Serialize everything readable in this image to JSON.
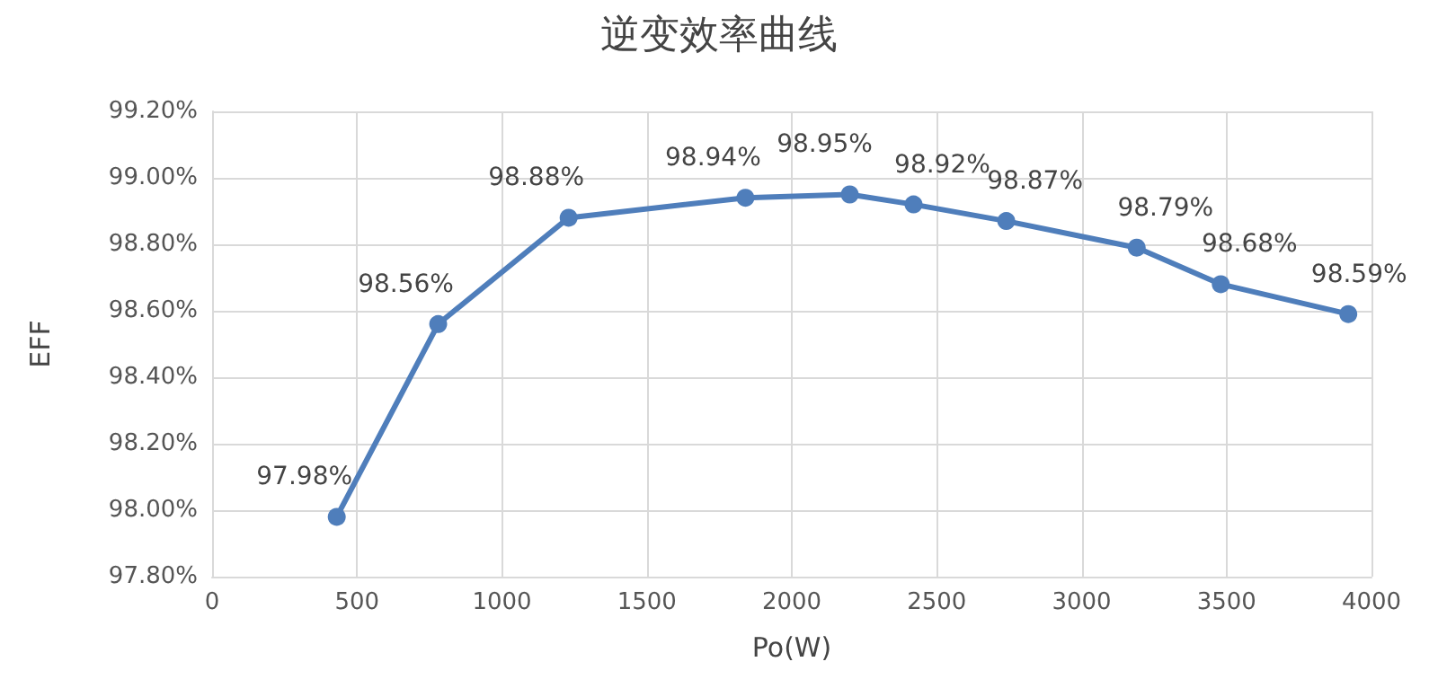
{
  "chart_data": {
    "type": "line",
    "title": "逆变效率曲线",
    "xlabel": "Po(W)",
    "ylabel": "EFF",
    "x": [
      430,
      780,
      1230,
      1840,
      2200,
      2420,
      2740,
      3190,
      3480,
      3920
    ],
    "series": [
      {
        "color": "#4f7ebb",
        "values": [
          97.98,
          98.56,
          98.88,
          98.94,
          98.95,
          98.92,
          98.87,
          98.79,
          98.68,
          98.59
        ],
        "value_labels": [
          "97.98%",
          "98.56%",
          "98.88%",
          "98.94%",
          "98.95%",
          "98.92%",
          "98.87%",
          "98.79%",
          "98.68%",
          "98.59%"
        ]
      }
    ],
    "xlim": [
      0,
      4000
    ],
    "xticks": [
      0,
      500,
      1000,
      1500,
      2000,
      2500,
      3000,
      3500,
      4000
    ],
    "ylim": [
      97.8,
      99.2
    ],
    "yticks": [
      {
        "value": 97.8,
        "label": "97.80%"
      },
      {
        "value": 98.0,
        "label": "98.00%"
      },
      {
        "value": 98.2,
        "label": "98.20%"
      },
      {
        "value": 98.4,
        "label": "98.40%"
      },
      {
        "value": 98.6,
        "label": "98.60%"
      },
      {
        "value": 98.8,
        "label": "98.80%"
      },
      {
        "value": 99.0,
        "label": "99.00%"
      },
      {
        "value": 99.2,
        "label": "99.20%"
      }
    ],
    "grid": true,
    "marker": "circle",
    "line_style": "solid"
  }
}
